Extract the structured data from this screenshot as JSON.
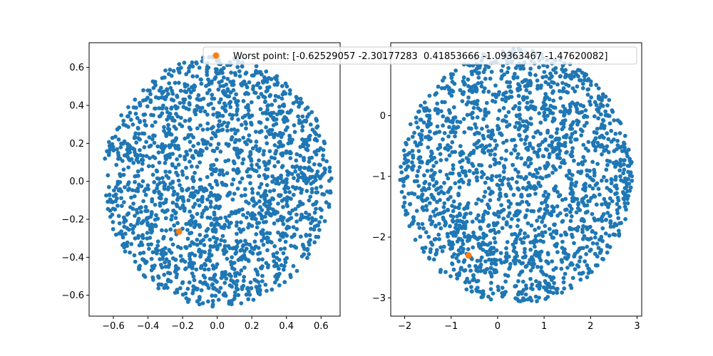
{
  "chart_data": [
    {
      "type": "scatter",
      "title": "",
      "xlabel": "",
      "ylabel": "",
      "xlim": [
        -0.74,
        0.71
      ],
      "ylim": [
        -0.71,
        0.73
      ],
      "xticks": [
        -0.6,
        -0.4,
        -0.2,
        0.0,
        0.2,
        0.4,
        0.6
      ],
      "xtick_labels": [
        "−0.6",
        "−0.4",
        "−0.2",
        "0.0",
        "0.2",
        "0.4",
        "0.6"
      ],
      "yticks": [
        -0.6,
        -0.4,
        -0.2,
        0.0,
        0.2,
        0.4,
        0.6
      ],
      "ytick_labels": [
        "−0.6",
        "−0.4",
        "−0.2",
        "0.0",
        "0.2",
        "0.4",
        "0.6"
      ],
      "grid": false,
      "series": [
        {
          "name": "",
          "color": "#1f77b4",
          "distribution": "approx. 1900 points filling a disc centred at (0, 0) with radius about 0.66",
          "center": [
            0.0,
            0.0
          ],
          "radius": 0.66,
          "count": 1900
        },
        {
          "name": "Worst point: [-0.62529057 -2.30177283  0.41853666 -1.09363467 -1.47620082]",
          "color": "#ff7f0e",
          "x": [
            -0.22
          ],
          "y": [
            -0.265
          ]
        }
      ]
    },
    {
      "type": "scatter",
      "title": "",
      "xlabel": "",
      "ylabel": "",
      "xlim": [
        -2.3,
        3.1
      ],
      "ylim": [
        -3.3,
        1.2
      ],
      "xticks": [
        -2,
        -1,
        0,
        1,
        2,
        3
      ],
      "xtick_labels": [
        "−2",
        "−1",
        "0",
        "1",
        "2",
        "3"
      ],
      "yticks": [
        -3,
        -2,
        -1,
        0,
        1
      ],
      "ytick_labels": [
        "−3",
        "−2",
        "−1",
        "0",
        "1"
      ],
      "grid": false,
      "series": [
        {
          "name": "",
          "color": "#1f77b4",
          "distribution": "approx. 1900 points filling an elliptical cloud centred near (0.4, -1.0), spanning x -2.1 to 2.9 and y -3.1 to 1.1",
          "center": [
            0.4,
            -1.0
          ],
          "radii": [
            2.5,
            2.1
          ],
          "count": 1900
        },
        {
          "name": "Worst point",
          "color": "#ff7f0e",
          "x": [
            -0.6253
          ],
          "y": [
            -2.3018
          ]
        }
      ]
    }
  ],
  "legend": {
    "label": "Worst point: [-0.62529057 -2.30177283  0.41853666 -1.09363467 -1.47620082]",
    "marker_color": "#ff7f0e",
    "placement": "upper-right of left panel, overlapping right panel"
  }
}
